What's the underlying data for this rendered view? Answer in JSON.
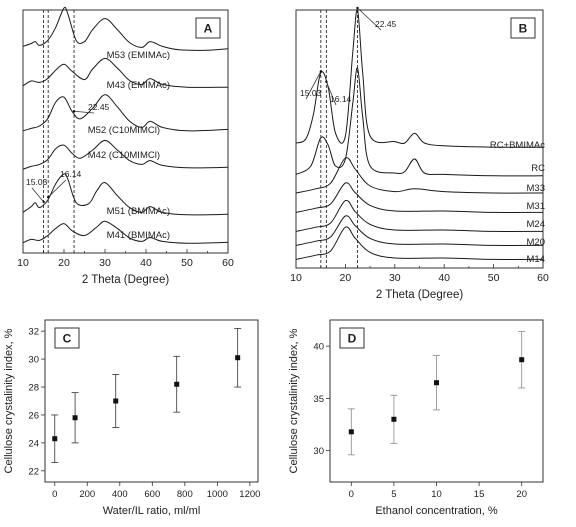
{
  "chart_data": [
    {
      "id": "A",
      "type": "line",
      "panel_label": "A",
      "xlabel": "2 Theta (Degree)",
      "xlim": [
        10,
        60
      ],
      "xticks": [
        10,
        20,
        30,
        40,
        50,
        60
      ],
      "xtick_labels": [
        "10",
        "20",
        "30",
        "40",
        "50",
        "60"
      ],
      "ylabel": "",
      "yticks_visible": false,
      "reference_lines_2theta": [
        15.03,
        16.14,
        22.45
      ],
      "annotations": [
        {
          "text": "22.45",
          "x": 22.45,
          "series": "M52 (C10MIMCl)"
        },
        {
          "text": "16.14",
          "x": 16.14,
          "series": "M51 (BMIMAc)"
        },
        {
          "text": "15.03",
          "x": 15.03,
          "series": "M51 (BMIMAc)"
        }
      ],
      "series": [
        {
          "name": "M53 (EMIMAc)",
          "points": [
            [
              10,
              0.2
            ],
            [
              12,
              0.26
            ],
            [
              13,
              0.3
            ],
            [
              14,
              0.22
            ],
            [
              16,
              0.32
            ],
            [
              18,
              0.6
            ],
            [
              20,
              1.0
            ],
            [
              21,
              0.86
            ],
            [
              23,
              0.32
            ],
            [
              25,
              0.3
            ],
            [
              27,
              0.55
            ],
            [
              30,
              0.78
            ],
            [
              33,
              0.55
            ],
            [
              36,
              0.28
            ],
            [
              39,
              0.18
            ],
            [
              41,
              0.3
            ],
            [
              44,
              0.2
            ],
            [
              48,
              0.13
            ],
            [
              55,
              0.12
            ],
            [
              60,
              0.15
            ]
          ]
        },
        {
          "name": "M43 (EMIMAc)",
          "points": [
            [
              10,
              0.15
            ],
            [
              12,
              0.25
            ],
            [
              14,
              0.22
            ],
            [
              16,
              0.3
            ],
            [
              18,
              0.48
            ],
            [
              20,
              0.6
            ],
            [
              22,
              0.45
            ],
            [
              25,
              0.28
            ],
            [
              27,
              0.5
            ],
            [
              30,
              0.72
            ],
            [
              33,
              0.52
            ],
            [
              36,
              0.26
            ],
            [
              39,
              0.18
            ],
            [
              41,
              0.3
            ],
            [
              44,
              0.18
            ],
            [
              50,
              0.12
            ],
            [
              60,
              0.12
            ]
          ]
        },
        {
          "name": "M52 (C10MIMCl)",
          "points": [
            [
              10,
              0.15
            ],
            [
              12,
              0.2
            ],
            [
              14,
              0.25
            ],
            [
              16,
              0.4
            ],
            [
              18,
              0.75
            ],
            [
              20,
              0.85
            ],
            [
              22,
              0.55
            ],
            [
              24,
              0.4
            ],
            [
              27,
              0.62
            ],
            [
              30,
              0.9
            ],
            [
              33,
              0.65
            ],
            [
              36,
              0.35
            ],
            [
              39,
              0.22
            ],
            [
              41,
              0.35
            ],
            [
              44,
              0.22
            ],
            [
              50,
              0.15
            ],
            [
              60,
              0.18
            ]
          ]
        },
        {
          "name": "M42 (C10MIMCl)",
          "points": [
            [
              10,
              0.12
            ],
            [
              12,
              0.18
            ],
            [
              14,
              0.22
            ],
            [
              16,
              0.32
            ],
            [
              18,
              0.55
            ],
            [
              20,
              0.62
            ],
            [
              22,
              0.45
            ],
            [
              24,
              0.35
            ],
            [
              27,
              0.52
            ],
            [
              30,
              0.72
            ],
            [
              33,
              0.52
            ],
            [
              36,
              0.3
            ],
            [
              39,
              0.22
            ],
            [
              41,
              0.3
            ],
            [
              44,
              0.2
            ],
            [
              50,
              0.15
            ],
            [
              60,
              0.16
            ]
          ]
        },
        {
          "name": "M51 (BMIMAc)",
          "points": [
            [
              10,
              0.2
            ],
            [
              12,
              0.32
            ],
            [
              13,
              0.4
            ],
            [
              14,
              0.3
            ],
            [
              16,
              0.45
            ],
            [
              18,
              0.8
            ],
            [
              20,
              1.0
            ],
            [
              21,
              0.88
            ],
            [
              23,
              0.4
            ],
            [
              26,
              0.38
            ],
            [
              28,
              0.65
            ],
            [
              30,
              0.82
            ],
            [
              33,
              0.55
            ],
            [
              36,
              0.3
            ],
            [
              39,
              0.2
            ],
            [
              41,
              0.32
            ],
            [
              44,
              0.2
            ],
            [
              50,
              0.15
            ],
            [
              60,
              0.16
            ]
          ]
        },
        {
          "name": "M41 (BMIMAc)",
          "points": [
            [
              10,
              0.15
            ],
            [
              12,
              0.22
            ],
            [
              14,
              0.2
            ],
            [
              16,
              0.3
            ],
            [
              18,
              0.45
            ],
            [
              20,
              0.55
            ],
            [
              22,
              0.4
            ],
            [
              25,
              0.3
            ],
            [
              28,
              0.48
            ],
            [
              30,
              0.6
            ],
            [
              33,
              0.45
            ],
            [
              36,
              0.25
            ],
            [
              39,
              0.18
            ],
            [
              41,
              0.26
            ],
            [
              44,
              0.18
            ],
            [
              50,
              0.14
            ],
            [
              60,
              0.16
            ]
          ]
        }
      ]
    },
    {
      "id": "B",
      "type": "line",
      "panel_label": "B",
      "xlabel": "2 Theta (Degree)",
      "xlim": [
        10,
        60
      ],
      "xticks": [
        10,
        20,
        30,
        40,
        50,
        60
      ],
      "xtick_labels": [
        "10",
        "20",
        "30",
        "40",
        "50",
        "60"
      ],
      "ylabel": "",
      "yticks_visible": false,
      "reference_lines_2theta": [
        15.03,
        16.14,
        22.45
      ],
      "annotations": [
        {
          "text": "22.45",
          "x": 22.45,
          "series": "RC+BMIMAc"
        },
        {
          "text": "15.03",
          "x": 15.03,
          "series": "RC+BMIMAc"
        },
        {
          "text": "16.14",
          "x": 16.14,
          "series": "RC+BMIMAc"
        }
      ],
      "series": [
        {
          "name": "RC+BMIMAc",
          "points": [
            [
              10,
              0.05
            ],
            [
              12,
              0.08
            ],
            [
              13.5,
              0.25
            ],
            [
              15,
              0.55
            ],
            [
              16.5,
              0.45
            ],
            [
              18,
              0.12
            ],
            [
              20,
              0.1
            ],
            [
              21.5,
              0.7
            ],
            [
              22.45,
              1.0
            ],
            [
              23.5,
              0.55
            ],
            [
              25,
              0.1
            ],
            [
              30,
              0.06
            ],
            [
              32,
              0.05
            ],
            [
              34,
              0.12
            ],
            [
              36,
              0.05
            ],
            [
              40,
              0.03
            ],
            [
              50,
              0.02
            ],
            [
              60,
              0.02
            ]
          ]
        },
        {
          "name": "RC",
          "points": [
            [
              10,
              0.04
            ],
            [
              13,
              0.1
            ],
            [
              15,
              0.3
            ],
            [
              16.5,
              0.25
            ],
            [
              18,
              0.1
            ],
            [
              20,
              0.15
            ],
            [
              21.5,
              0.55
            ],
            [
              22.45,
              0.8
            ],
            [
              23.5,
              0.45
            ],
            [
              25,
              0.1
            ],
            [
              30,
              0.05
            ],
            [
              32,
              0.06
            ],
            [
              34,
              0.15
            ],
            [
              36,
              0.05
            ],
            [
              40,
              0.04
            ],
            [
              50,
              0.03
            ],
            [
              60,
              0.03
            ]
          ]
        },
        {
          "name": "M33",
          "points": [
            [
              10,
              0.05
            ],
            [
              14,
              0.08
            ],
            [
              17,
              0.12
            ],
            [
              20,
              0.3
            ],
            [
              22,
              0.22
            ],
            [
              25,
              0.1
            ],
            [
              30,
              0.06
            ],
            [
              34,
              0.08
            ],
            [
              40,
              0.06
            ],
            [
              50,
              0.05
            ],
            [
              60,
              0.05
            ]
          ]
        },
        {
          "name": "M31",
          "points": [
            [
              10,
              0.04
            ],
            [
              14,
              0.07
            ],
            [
              17,
              0.1
            ],
            [
              20,
              0.25
            ],
            [
              22,
              0.18
            ],
            [
              25,
              0.09
            ],
            [
              30,
              0.05
            ],
            [
              40,
              0.05
            ],
            [
              50,
              0.04
            ],
            [
              60,
              0.04
            ]
          ]
        },
        {
          "name": "M24",
          "points": [
            [
              10,
              0.04
            ],
            [
              14,
              0.07
            ],
            [
              17,
              0.1
            ],
            [
              20,
              0.26
            ],
            [
              22,
              0.18
            ],
            [
              25,
              0.09
            ],
            [
              30,
              0.05
            ],
            [
              40,
              0.05
            ],
            [
              50,
              0.04
            ],
            [
              60,
              0.04
            ]
          ]
        },
        {
          "name": "M20",
          "points": [
            [
              10,
              0.04
            ],
            [
              14,
              0.07
            ],
            [
              17,
              0.1
            ],
            [
              20,
              0.25
            ],
            [
              22,
              0.18
            ],
            [
              25,
              0.09
            ],
            [
              30,
              0.05
            ],
            [
              40,
              0.05
            ],
            [
              50,
              0.04
            ],
            [
              60,
              0.04
            ]
          ]
        },
        {
          "name": "M14",
          "points": [
            [
              10,
              0.04
            ],
            [
              14,
              0.07
            ],
            [
              17,
              0.1
            ],
            [
              20,
              0.27
            ],
            [
              22,
              0.19
            ],
            [
              25,
              0.09
            ],
            [
              30,
              0.05
            ],
            [
              40,
              0.05
            ],
            [
              50,
              0.04
            ],
            [
              60,
              0.04
            ]
          ]
        }
      ]
    },
    {
      "id": "C",
      "type": "scatter",
      "panel_label": "C",
      "xlabel": "Water/IL ratio, ml/ml",
      "ylabel": "Cellulose crystalinity index, %",
      "xlim": [
        -60,
        1250
      ],
      "ylim": [
        21.2,
        32.8
      ],
      "xticks": [
        0,
        200,
        400,
        600,
        800,
        1000,
        1200
      ],
      "yticks": [
        22,
        24,
        26,
        28,
        30,
        32
      ],
      "x": [
        0,
        125,
        375,
        750,
        1125
      ],
      "y": [
        24.3,
        25.8,
        27.0,
        28.2,
        30.1
      ],
      "yerr": [
        1.7,
        1.8,
        1.9,
        2.0,
        2.1
      ]
    },
    {
      "id": "D",
      "type": "scatter",
      "panel_label": "D",
      "xlabel": "Ethanol concentration, %",
      "ylabel": "Cellulose crystalinity index, %",
      "xlim": [
        -2.5,
        22.5
      ],
      "ylim": [
        27,
        42.5
      ],
      "xticks": [
        0,
        5,
        10,
        15,
        20
      ],
      "yticks": [
        30,
        35,
        40
      ],
      "x": [
        0,
        5,
        10,
        20
      ],
      "y": [
        31.8,
        33.0,
        36.5,
        38.7
      ],
      "yerr": [
        2.2,
        2.3,
        2.6,
        2.7
      ]
    }
  ]
}
